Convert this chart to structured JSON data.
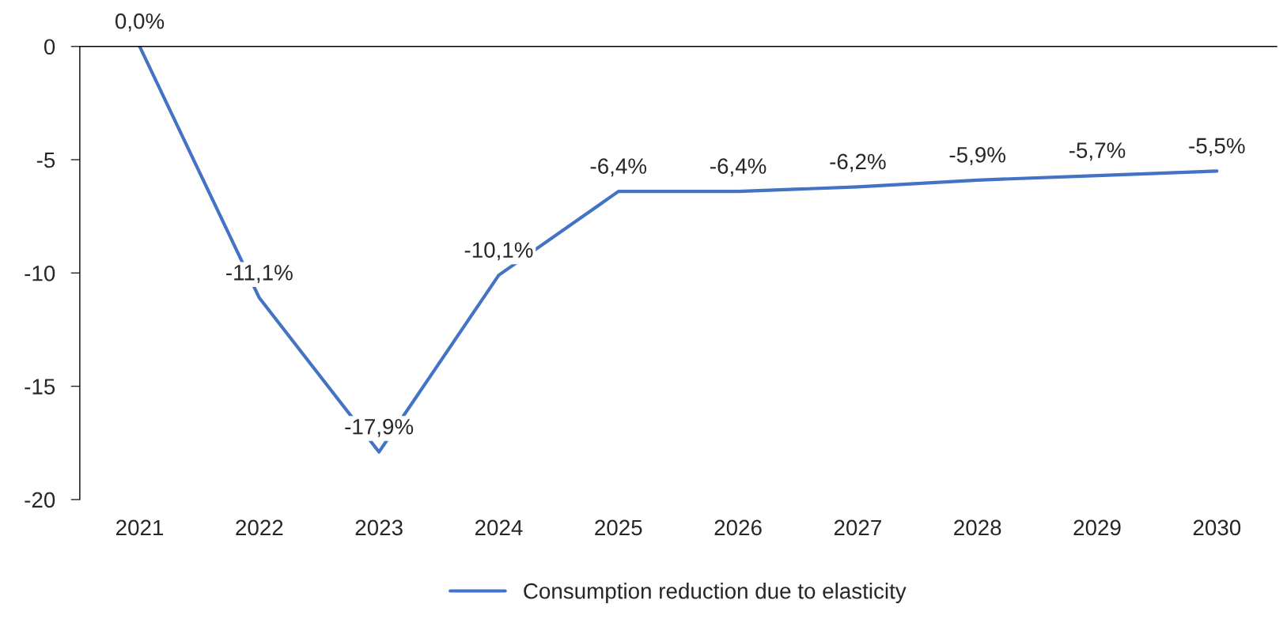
{
  "chart_data": {
    "type": "line",
    "categories": [
      "2021",
      "2022",
      "2023",
      "2024",
      "2025",
      "2026",
      "2027",
      "2028",
      "2029",
      "2030"
    ],
    "series": [
      {
        "name": "Consumption reduction due to elasticity",
        "color": "#4472c4",
        "values": [
          0.0,
          -11.1,
          -17.9,
          -10.1,
          -6.4,
          -6.4,
          -6.2,
          -5.9,
          -5.7,
          -5.5
        ],
        "value_labels": [
          "0,0%",
          "-11,1%",
          "-17,9%",
          "-10,1%",
          "-6,4%",
          "-6,4%",
          "-6,2%",
          "-5,9%",
          "-5,7%",
          "-5,5%"
        ]
      }
    ],
    "ylim": [
      -20,
      0
    ],
    "yticks": [
      -20,
      -15,
      -10,
      -5,
      0
    ],
    "grid": false,
    "legend": "bottom",
    "marker": "none",
    "line_style": "solid"
  }
}
